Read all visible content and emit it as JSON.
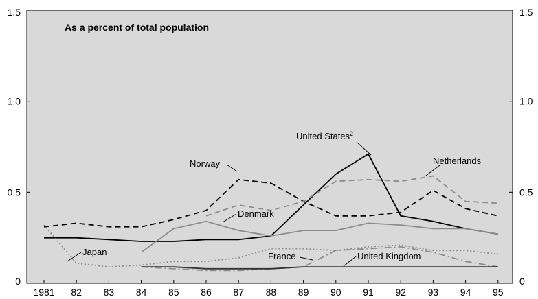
{
  "chart_data": {
    "type": "line",
    "title": "As a percent of total population",
    "xlabel": "",
    "ylabel": "",
    "ylim": [
      0,
      1.5
    ],
    "y_ticks_left": [
      "0",
      "0.5",
      "1.0",
      "1.5"
    ],
    "y_ticks_right": [
      "0",
      "0.5",
      "1.0",
      "1.5"
    ],
    "x_tick_labels": [
      "1981",
      "82",
      "83",
      "84",
      "85",
      "86",
      "87",
      "88",
      "89",
      "90",
      "91",
      "92",
      "93",
      "94",
      "95"
    ],
    "x_values": [
      1981,
      1982,
      1983,
      1984,
      1985,
      1986,
      1987,
      1988,
      1989,
      1990,
      1991,
      1992,
      1993,
      1994,
      1995
    ],
    "grid": false,
    "plot_background": "#d9d9d9",
    "series": [
      {
        "name": "United States",
        "label_suffix": "2",
        "color": "#000000",
        "style": "solid",
        "x": [
          1981,
          1982,
          1983,
          1984,
          1985,
          1986,
          1987,
          1988,
          1989,
          1990,
          1991,
          1992,
          1993,
          1994,
          1995
        ],
        "values": [
          0.25,
          0.25,
          0.24,
          0.23,
          0.23,
          0.24,
          0.24,
          0.26,
          0.43,
          0.6,
          0.71,
          0.37,
          0.34,
          0.3,
          0.27
        ]
      },
      {
        "name": "Norway",
        "color": "#000000",
        "style": "dashed",
        "x": [
          1981,
          1982,
          1983,
          1984,
          1985,
          1986,
          1987,
          1988,
          1989,
          1990,
          1991,
          1992,
          1993,
          1994,
          1995
        ],
        "values": [
          0.31,
          0.33,
          0.31,
          0.31,
          0.35,
          0.4,
          0.57,
          0.55,
          0.45,
          0.37,
          0.37,
          0.39,
          0.51,
          0.41,
          0.37
        ]
      },
      {
        "name": "Netherlands",
        "color": "#8c8c8c",
        "style": "dashed",
        "x": [
          1986,
          1987,
          1988,
          1989,
          1990,
          1991,
          1992,
          1993,
          1994,
          1995
        ],
        "values": [
          0.37,
          0.43,
          0.4,
          0.45,
          0.56,
          0.57,
          0.56,
          0.59,
          0.45,
          0.44
        ]
      },
      {
        "name": "Denmark",
        "color": "#8c8c8c",
        "style": "solid",
        "x": [
          1984,
          1985,
          1986,
          1987,
          1988,
          1989,
          1990,
          1991,
          1992,
          1993,
          1994,
          1995
        ],
        "values": [
          0.17,
          0.3,
          0.34,
          0.29,
          0.26,
          0.29,
          0.29,
          0.33,
          0.32,
          0.3,
          0.3,
          0.27
        ]
      },
      {
        "name": "Japan",
        "color": "#8c8c8c",
        "style": "dotted",
        "x": [
          1981,
          1982,
          1983,
          1984,
          1985,
          1986,
          1987,
          1988,
          1989,
          1990,
          1991,
          1992,
          1993,
          1994,
          1995
        ],
        "values": [
          0.32,
          0.11,
          0.09,
          0.1,
          0.12,
          0.12,
          0.14,
          0.19,
          0.19,
          0.18,
          0.2,
          0.21,
          0.18,
          0.18,
          0.16
        ]
      },
      {
        "name": "France",
        "color": "#8c8c8c",
        "style": "dashdot",
        "x": [
          1984,
          1985,
          1986,
          1987,
          1988,
          1989,
          1990,
          1991,
          1992,
          1993,
          1994,
          1995
        ],
        "values": [
          0.09,
          0.08,
          0.07,
          0.07,
          0.08,
          0.09,
          0.18,
          0.19,
          0.2,
          0.17,
          0.12,
          0.09
        ]
      },
      {
        "name": "United Kingdom",
        "color": "#333333",
        "style": "solid",
        "x": [
          1984,
          1985,
          1986,
          1987,
          1988,
          1989,
          1990,
          1991,
          1992,
          1993,
          1994,
          1995
        ],
        "values": [
          0.09,
          0.09,
          0.08,
          0.08,
          0.08,
          0.09,
          0.09,
          0.09,
          0.09,
          0.09,
          0.09,
          0.09
        ]
      }
    ]
  }
}
